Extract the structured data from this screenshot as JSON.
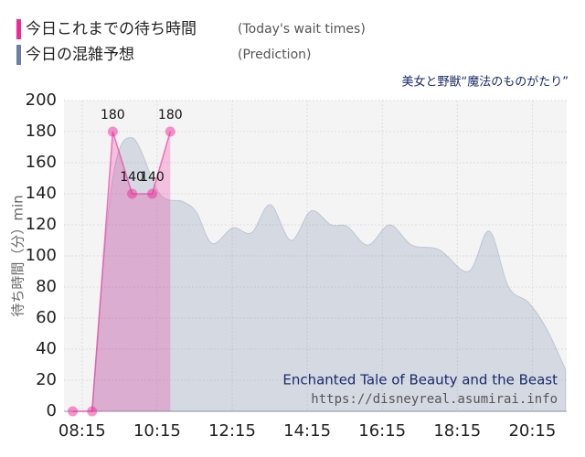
{
  "chart_data": {
    "type": "area",
    "subtitle": "美女と野獣“魔法のものがたり”",
    "y_label": "待ち時間（分）min",
    "annotations": [
      "Enchanted Tale of Beauty and the Beast",
      "https://disneyreal.asumirai.info"
    ],
    "series": [
      {
        "name": "今日これまでの待ち時間",
        "note": "(Today's wait times)",
        "color": "#f0299a",
        "x": [
          480,
          511,
          544,
          575,
          607,
          636
        ],
        "values": [
          0,
          0,
          180,
          140,
          140,
          180
        ],
        "value_labels": [
          null,
          null,
          "180",
          "140",
          "140",
          "180"
        ]
      },
      {
        "name": "今日の混雑予想",
        "note": "(Prediction)",
        "color": "#6b7fa6",
        "x": [
          510,
          542,
          575,
          619,
          656,
          678,
          703,
          736,
          766,
          796,
          829,
          861,
          893,
          919,
          952,
          987,
          1022,
          1066,
          1113,
          1146,
          1177,
          1209,
          1238,
          1268
        ],
        "values": [
          0,
          145,
          176,
          140,
          135,
          128,
          108,
          118,
          115,
          133,
          110,
          129,
          120,
          119,
          107,
          120,
          107,
          104,
          90,
          116,
          80,
          70,
          53,
          27
        ]
      }
    ],
    "xlim": [
      466,
      1270
    ],
    "xticks": [
      {
        "value": 495,
        "label": "08:15"
      },
      {
        "value": 615,
        "label": "10:15"
      },
      {
        "value": 735,
        "label": "12:15"
      },
      {
        "value": 855,
        "label": "14:15"
      },
      {
        "value": 975,
        "label": "16:15"
      },
      {
        "value": 1095,
        "label": "18:15"
      },
      {
        "value": 1215,
        "label": "20:15"
      }
    ],
    "ylim": [
      0,
      200
    ],
    "yticks": [
      0,
      20,
      40,
      60,
      80,
      100,
      120,
      140,
      160,
      180,
      200
    ],
    "grid": true
  }
}
